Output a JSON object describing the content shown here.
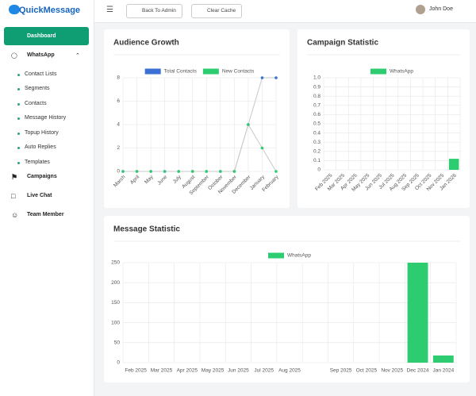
{
  "brand": "QuickMessage",
  "topbar": {
    "back_button": "Back To Admin",
    "cache_button": "Clear Cache",
    "user": "John Doe"
  },
  "sidebar": {
    "items": [
      "Dashboard",
      "WhatsApp",
      "Contact Lists",
      "Segments",
      "Contacts",
      "Message History",
      "Topup History",
      "Auto Replies",
      "Templates",
      "Campaigns",
      "Live Chat",
      "Team Member"
    ]
  },
  "charts": [
    {
      "type": "line",
      "title": "Audience Growth",
      "categories": [
        "March",
        "April",
        "May",
        "June",
        "July",
        "August",
        "September",
        "October",
        "November",
        "December",
        "January",
        "February"
      ],
      "series": [
        {
          "name": "Total Contacts",
          "color": "#3b6fd4",
          "values": [
            0,
            0,
            0,
            0,
            0,
            0,
            0,
            0,
            0,
            4,
            8,
            8
          ]
        },
        {
          "name": "New Contacts",
          "color": "#2ecc71",
          "values": [
            0,
            0,
            0,
            0,
            0,
            0,
            0,
            0,
            0,
            4,
            2,
            0
          ]
        }
      ],
      "ylim": [
        0,
        8
      ],
      "yticks": [
        0,
        2,
        4,
        6,
        8
      ],
      "grid": true
    },
    {
      "type": "bar",
      "title": "Campaign Statistic",
      "categories": [
        "Feb 2025",
        "Mar 2025",
        "Apr 2025",
        "May 2025",
        "Jun 2025",
        "Jul 2025",
        "Aug 2025",
        "Sep 2025",
        "Oct 2025",
        "Nov 2025",
        "Jan 2026"
      ],
      "series": [
        {
          "name": "WhatsApp",
          "color": "#2ecc71",
          "values": [
            0,
            0,
            0,
            0,
            0,
            0,
            0,
            0,
            0,
            0,
            0.12
          ]
        }
      ],
      "ylim": [
        0,
        1
      ],
      "yticks": [
        0,
        0.1,
        0.2,
        0.3,
        0.4,
        0.5,
        0.6,
        0.7,
        0.8,
        0.9,
        {
          "value": 1,
          "label": "1.0"
        }
      ],
      "grid": true
    },
    {
      "type": "bar",
      "title": "Message Statistic",
      "categories": [
        "Feb 2025",
        "Mar 2025",
        "Apr 2025",
        "May 2025",
        "Jun 2025",
        "Jul 2025",
        "Aug 2025",
        null,
        "Sep 2025",
        "Oct 2025",
        "Nov 2025",
        "Dec 2024",
        "Jan 2024"
      ],
      "series": [
        {
          "name": "WhatsApp",
          "color": "#2ecc71",
          "values": [
            0,
            0,
            0,
            0,
            0,
            0,
            0,
            0,
            0,
            0,
            0,
            250,
            18
          ]
        }
      ],
      "ylim": [
        0,
        250
      ],
      "yticks": [
        0,
        50,
        100,
        150,
        200,
        250
      ],
      "grid": true
    }
  ]
}
